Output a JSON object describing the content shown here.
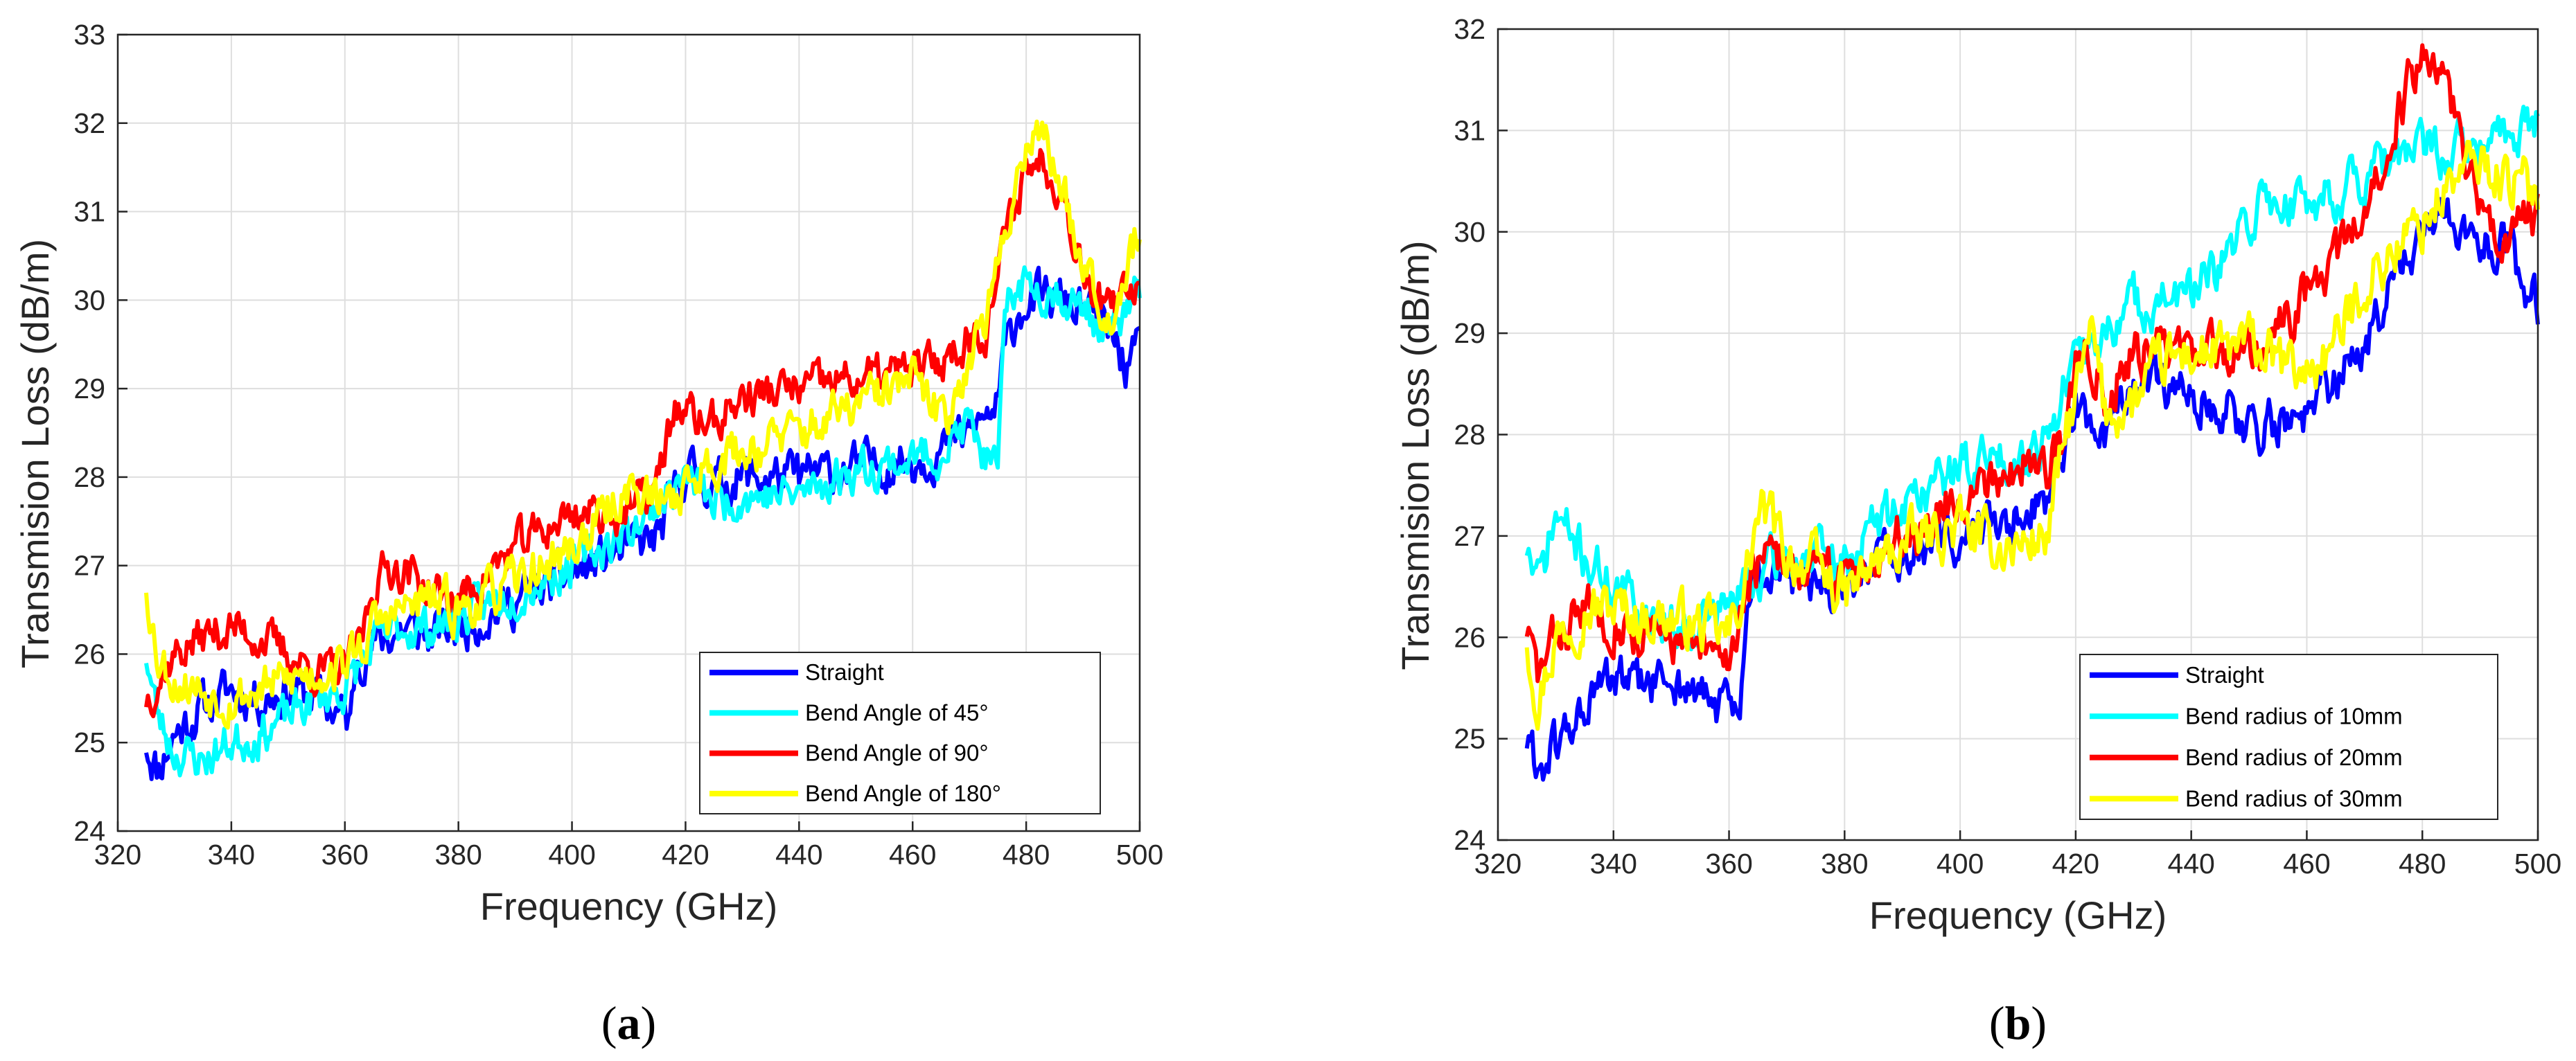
{
  "chart_data": [
    {
      "type": "line",
      "panel_caption_letter": "a",
      "xlabel": "Frequency (GHz)",
      "ylabel": "Transmision Loss (dB/m)",
      "xlim": [
        325,
        500
      ],
      "ylim": [
        24,
        33
      ],
      "xticks": [
        320,
        340,
        360,
        380,
        400,
        420,
        440,
        460,
        480,
        500
      ],
      "yticks": [
        24,
        25,
        26,
        27,
        28,
        29,
        30,
        31,
        32,
        33
      ],
      "grid": true,
      "legend_position": "bottom-right",
      "series": [
        {
          "name": "Straight",
          "color": "#0000ff",
          "seed": 11,
          "noise": 0.22,
          "x": [
            325,
            327,
            330,
            335,
            340,
            345,
            350,
            355,
            360,
            361,
            362,
            365,
            370,
            375,
            380,
            390,
            400,
            410,
            415,
            420,
            425,
            430,
            440,
            450,
            460,
            465,
            470,
            475,
            476,
            478,
            480,
            485,
            490,
            495,
            498,
            500
          ],
          "y": [
            25.0,
            24.7,
            25.1,
            25.4,
            25.6,
            25.5,
            25.6,
            25.5,
            25.3,
            25.2,
            26.0,
            26.1,
            26.3,
            26.2,
            26.3,
            26.6,
            26.9,
            27.2,
            27.3,
            28.1,
            27.9,
            28.0,
            28.0,
            28.1,
            28.2,
            28.3,
            28.5,
            28.8,
            29.3,
            29.8,
            30.0,
            30.0,
            29.9,
            29.6,
            29.2,
            29.4
          ]
        },
        {
          "name": "Bend Angle of 45°",
          "color": "#00ffff",
          "seed": 23,
          "noise": 0.2,
          "x": [
            325,
            327,
            330,
            335,
            340,
            345,
            350,
            355,
            360,
            362,
            365,
            370,
            375,
            380,
            390,
            400,
            410,
            415,
            420,
            425,
            430,
            440,
            450,
            460,
            465,
            470,
            473,
            475,
            476,
            477,
            480,
            485,
            490,
            495,
            500
          ],
          "y": [
            26.0,
            25.3,
            24.9,
            24.8,
            25.0,
            25.1,
            25.3,
            25.5,
            25.6,
            25.8,
            26.1,
            26.3,
            26.3,
            26.4,
            26.7,
            27.0,
            27.4,
            27.7,
            28.0,
            27.7,
            27.8,
            27.8,
            28.1,
            28.2,
            28.3,
            28.6,
            28.2,
            28.0,
            29.4,
            30.1,
            30.2,
            30.1,
            29.9,
            29.6,
            30.1
          ]
        },
        {
          "name": "Bend Angle of 90°",
          "color": "#ff0000",
          "seed": 37,
          "noise": 0.2,
          "x": [
            325,
            327,
            330,
            335,
            340,
            345,
            350,
            355,
            360,
            363,
            365,
            368,
            372,
            375,
            380,
            390,
            400,
            410,
            415,
            418,
            420,
            425,
            430,
            440,
            450,
            460,
            465,
            470,
            473,
            475,
            478,
            480,
            483,
            486,
            490,
            495,
            500
          ],
          "y": [
            25.5,
            25.7,
            26.0,
            26.2,
            26.3,
            26.2,
            26.0,
            25.8,
            25.8,
            26.2,
            26.8,
            27.0,
            26.9,
            26.7,
            26.6,
            27.2,
            27.6,
            27.6,
            27.9,
            28.8,
            28.7,
            28.6,
            28.9,
            29.0,
            29.1,
            29.2,
            29.3,
            29.6,
            29.7,
            30.3,
            31.1,
            31.5,
            31.6,
            31.3,
            30.4,
            29.8,
            30.3
          ]
        },
        {
          "name": "Bend Angle of 180°",
          "color": "#ffff00",
          "seed": 53,
          "noise": 0.22,
          "x": [
            325,
            327,
            330,
            335,
            340,
            345,
            350,
            355,
            360,
            363,
            365,
            370,
            375,
            380,
            390,
            400,
            405,
            410,
            415,
            420,
            425,
            430,
            440,
            450,
            460,
            463,
            466,
            470,
            473,
            475,
            478,
            480,
            482,
            485,
            490,
            495,
            497,
            500
          ],
          "y": [
            26.8,
            26.0,
            25.7,
            25.6,
            25.5,
            25.6,
            25.7,
            25.8,
            25.9,
            26.1,
            26.3,
            26.5,
            26.6,
            26.5,
            26.8,
            27.2,
            27.5,
            27.9,
            27.7,
            27.9,
            28.2,
            28.3,
            28.5,
            28.8,
            29.1,
            28.8,
            28.7,
            29.4,
            29.8,
            30.3,
            31.3,
            31.8,
            32.0,
            31.5,
            30.5,
            29.8,
            30.3,
            30.8
          ]
        }
      ]
    },
    {
      "type": "line",
      "panel_caption_letter": "b",
      "xlabel": "Frequency (GHz)",
      "ylabel": "Transmision Loss (dB/m)",
      "xlim": [
        325,
        500
      ],
      "ylim": [
        24,
        32
      ],
      "xticks": [
        320,
        340,
        360,
        380,
        400,
        420,
        440,
        460,
        480,
        500
      ],
      "yticks": [
        24,
        25,
        26,
        27,
        28,
        29,
        30,
        31,
        32
      ],
      "grid": true,
      "legend_position": "bottom-right",
      "series": [
        {
          "name": "Straight",
          "color": "#0000ff",
          "seed": 61,
          "noise": 0.2,
          "x": [
            325,
            327,
            330,
            335,
            340,
            345,
            350,
            355,
            360,
            362,
            363,
            365,
            370,
            375,
            380,
            385,
            390,
            395,
            400,
            410,
            415,
            418,
            420,
            425,
            430,
            435,
            440,
            445,
            450,
            455,
            460,
            465,
            470,
            475,
            480,
            485,
            490,
            495,
            498,
            500
          ],
          "y": [
            25.0,
            24.7,
            24.9,
            25.3,
            25.6,
            25.5,
            25.6,
            25.4,
            25.3,
            25.2,
            26.2,
            26.7,
            26.6,
            26.4,
            26.5,
            26.7,
            26.8,
            26.9,
            27.0,
            27.2,
            27.4,
            27.9,
            28.3,
            27.9,
            28.4,
            28.5,
            28.4,
            28.3,
            28.1,
            28.1,
            28.2,
            28.5,
            28.9,
            29.5,
            30.0,
            30.1,
            30.0,
            29.8,
            29.4,
            29.3
          ]
        },
        {
          "name": "Bend radius of 10mm",
          "color": "#00ffff",
          "seed": 71,
          "noise": 0.2,
          "x": [
            325,
            327,
            330,
            335,
            340,
            345,
            350,
            355,
            360,
            363,
            365,
            370,
            375,
            380,
            385,
            390,
            395,
            400,
            410,
            415,
            420,
            425,
            430,
            435,
            440,
            445,
            450,
            452,
            455,
            460,
            465,
            470,
            475,
            480,
            485,
            490,
            495,
            500
          ],
          "y": [
            26.9,
            26.5,
            27.2,
            26.8,
            26.5,
            26.3,
            26.1,
            26.2,
            26.3,
            26.5,
            26.6,
            26.8,
            26.8,
            26.7,
            27.1,
            27.3,
            27.5,
            27.7,
            27.8,
            28.0,
            28.7,
            29.0,
            29.3,
            29.3,
            29.4,
            29.6,
            30.1,
            30.3,
            30.3,
            30.3,
            30.4,
            30.5,
            30.7,
            30.8,
            30.8,
            30.8,
            31.0,
            31.1
          ]
        },
        {
          "name": "Bend radius of 20mm",
          "color": "#ff0000",
          "seed": 83,
          "noise": 0.2,
          "x": [
            325,
            327,
            330,
            335,
            340,
            345,
            350,
            355,
            360,
            363,
            365,
            370,
            375,
            380,
            385,
            390,
            395,
            400,
            405,
            410,
            415,
            418,
            420,
            422,
            425,
            430,
            435,
            440,
            445,
            450,
            455,
            460,
            465,
            470,
            473,
            475,
            478,
            480,
            482,
            485,
            490,
            495,
            500
          ],
          "y": [
            26.1,
            25.6,
            26.0,
            26.3,
            26.2,
            26.0,
            26.0,
            25.8,
            25.8,
            26.5,
            26.7,
            26.8,
            26.6,
            26.6,
            26.8,
            27.0,
            27.2,
            27.4,
            27.6,
            27.7,
            27.7,
            28.0,
            28.6,
            28.9,
            28.4,
            28.8,
            28.9,
            28.8,
            28.8,
            28.9,
            29.0,
            29.4,
            29.7,
            30.2,
            30.6,
            31.0,
            31.5,
            31.7,
            31.8,
            31.3,
            30.3,
            29.9,
            30.2
          ]
        },
        {
          "name": "Bend radius of 30mm",
          "color": "#ffff00",
          "seed": 97,
          "noise": 0.22,
          "x": [
            325,
            327,
            330,
            335,
            340,
            345,
            350,
            355,
            360,
            363,
            365,
            367,
            370,
            375,
            380,
            385,
            390,
            395,
            400,
            405,
            410,
            415,
            418,
            420,
            423,
            425,
            430,
            435,
            440,
            445,
            450,
            455,
            460,
            465,
            470,
            475,
            480,
            485,
            490,
            495,
            500
          ],
          "y": [
            26.0,
            25.4,
            26.0,
            26.3,
            26.3,
            26.2,
            26.2,
            26.1,
            26.0,
            26.6,
            27.2,
            27.2,
            26.8,
            26.7,
            26.4,
            26.7,
            26.9,
            27.0,
            27.1,
            26.9,
            26.9,
            27.0,
            27.9,
            28.4,
            29.0,
            28.2,
            28.3,
            28.7,
            28.8,
            28.8,
            28.9,
            28.7,
            28.6,
            28.9,
            29.5,
            29.8,
            30.1,
            30.5,
            30.7,
            30.5,
            30.4
          ]
        }
      ]
    }
  ]
}
